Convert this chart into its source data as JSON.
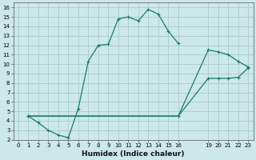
{
  "bg_color": "#cce8e8",
  "grid_color": "#aacccc",
  "line_color": "#1a7a6e",
  "xlabel": "Humidex (Indice chaleur)",
  "xlim": [
    -0.5,
    23.5
  ],
  "ylim": [
    2,
    16.5
  ],
  "xticks": [
    0,
    1,
    2,
    3,
    4,
    5,
    6,
    7,
    8,
    9,
    10,
    11,
    12,
    13,
    14,
    15,
    16,
    19,
    20,
    21,
    22,
    23
  ],
  "yticks": [
    2,
    3,
    4,
    5,
    6,
    7,
    8,
    9,
    10,
    11,
    12,
    13,
    14,
    15,
    16
  ],
  "curve1_x": [
    1,
    2,
    3,
    4,
    5,
    5,
    6,
    7,
    8,
    9,
    10,
    11,
    12,
    13,
    14,
    15,
    16
  ],
  "curve1_y": [
    4.5,
    3.8,
    3.0,
    2.5,
    2.2,
    2.2,
    5.3,
    10.3,
    12.0,
    12.1,
    14.8,
    15.0,
    14.6,
    15.8,
    15.3,
    13.5,
    12.2
  ],
  "curve2_x": [
    1,
    16,
    19,
    20,
    21,
    22,
    23
  ],
  "curve2_y": [
    4.5,
    4.5,
    11.5,
    11.3,
    11.0,
    10.3,
    9.7
  ],
  "curve3_x": [
    1,
    16,
    19,
    20,
    21,
    22,
    23
  ],
  "curve3_y": [
    4.5,
    4.5,
    8.5,
    8.5,
    8.5,
    8.6,
    9.6
  ]
}
